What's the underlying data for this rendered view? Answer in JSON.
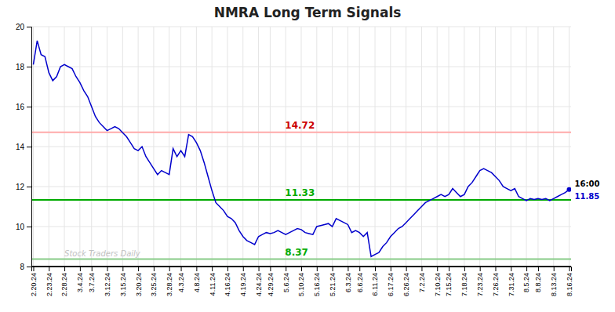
{
  "chart_data": {
    "type": "line",
    "title": "NMRA Long Term Signals",
    "categories": [
      "2.20.24",
      null,
      null,
      null,
      "2.23.24",
      null,
      null,
      null,
      "2.28.24",
      null,
      null,
      null,
      "3.4.24",
      null,
      null,
      "3.7.24",
      null,
      null,
      null,
      "3.12.24",
      null,
      null,
      null,
      "3.15.24",
      null,
      null,
      null,
      "3.20.24",
      null,
      null,
      null,
      "3.25.24",
      null,
      null,
      null,
      "3.28.24",
      null,
      null,
      "4.3.24",
      null,
      null,
      null,
      "4.8.24",
      null,
      null,
      null,
      "4.11.24",
      null,
      null,
      null,
      "4.16.24",
      null,
      null,
      null,
      "4.19.24",
      null,
      null,
      null,
      "4.24.24",
      null,
      null,
      "4.29.24",
      null,
      null,
      null,
      "5.6.24",
      null,
      null,
      null,
      "5.10.24",
      null,
      null,
      null,
      "5.16.24",
      null,
      null,
      null,
      "5.21.24",
      null,
      null,
      null,
      "6.3.24",
      null,
      null,
      "6.6.24",
      null,
      null,
      null,
      "6.11.24",
      null,
      null,
      null,
      "6.17.24",
      null,
      null,
      null,
      "6.26.24",
      null,
      null,
      null,
      "7.2.24",
      null,
      null,
      null,
      "7.10.24",
      null,
      null,
      "7.15.24",
      null,
      null,
      null,
      "7.18.24",
      null,
      null,
      null,
      "7.23.24",
      null,
      null,
      null,
      "7.26.24",
      null,
      null,
      null,
      "7.31.24",
      null,
      null,
      null,
      "8.5.24",
      null,
      null,
      "8.8.24",
      null,
      null,
      null,
      "8.13.24",
      null,
      null,
      null,
      "8.16.24"
    ],
    "values": [
      18.1,
      19.3,
      18.6,
      18.5,
      17.7,
      17.3,
      17.5,
      18.0,
      18.1,
      18.0,
      17.9,
      17.5,
      17.2,
      16.8,
      16.5,
      16.0,
      15.5,
      15.2,
      15.0,
      14.8,
      14.9,
      15.0,
      14.9,
      14.7,
      14.5,
      14.2,
      13.9,
      13.8,
      14.0,
      13.5,
      13.2,
      12.9,
      12.6,
      12.8,
      12.7,
      12.6,
      13.9,
      13.5,
      13.8,
      13.5,
      14.6,
      14.5,
      14.2,
      13.8,
      13.2,
      12.5,
      11.8,
      11.2,
      11.0,
      10.8,
      10.5,
      10.4,
      10.2,
      9.8,
      9.5,
      9.3,
      9.2,
      9.1,
      9.5,
      9.6,
      9.7,
      9.65,
      9.7,
      9.8,
      9.7,
      9.6,
      9.7,
      9.8,
      9.9,
      9.85,
      9.7,
      9.65,
      9.6,
      10.0,
      10.05,
      10.1,
      10.15,
      10.0,
      10.4,
      10.3,
      10.2,
      10.1,
      9.7,
      9.8,
      9.7,
      9.5,
      9.7,
      8.5,
      8.6,
      8.7,
      9.0,
      9.2,
      9.5,
      9.7,
      9.9,
      10.0,
      10.2,
      10.4,
      10.6,
      10.8,
      11.0,
      11.2,
      11.3,
      11.4,
      11.5,
      11.6,
      11.5,
      11.6,
      11.9,
      11.7,
      11.5,
      11.6,
      12.0,
      12.2,
      12.5,
      12.8,
      12.9,
      12.8,
      12.7,
      12.5,
      12.3,
      12.0,
      11.9,
      11.8,
      11.9,
      11.5,
      11.4,
      11.3,
      11.4,
      11.35,
      11.4,
      11.35,
      11.4,
      11.3,
      11.4,
      11.5,
      11.6,
      11.7,
      11.85
    ],
    "color": "#0000cc",
    "ylim": [
      8.0,
      20.0
    ],
    "yticks": [
      8,
      10,
      12,
      14,
      16,
      18,
      20
    ],
    "grid": true,
    "reference_lines": [
      {
        "value": 14.72,
        "color": "#ffaaaa",
        "label": "14.72",
        "label_color": "#cc0000"
      },
      {
        "value": 11.33,
        "color": "#00aa00",
        "label": "11.33",
        "label_color": "#00aa00"
      },
      {
        "value": 8.37,
        "color": "#88cc88",
        "label": "8.37",
        "label_color": "#00aa00"
      },
      {
        "value": 8.0,
        "color": "#000000"
      }
    ],
    "annotations": [
      {
        "text": "Stock Traders Daily",
        "x": "2.28.24",
        "y": 8.5,
        "color": "#bbbbbb"
      },
      {
        "text": "16:00",
        "x": "8.16.24",
        "y": 11.85,
        "color": "#000000"
      },
      {
        "text": "11.85",
        "x": "8.16.24",
        "y": 11.85,
        "color": "#0000cc"
      }
    ]
  }
}
